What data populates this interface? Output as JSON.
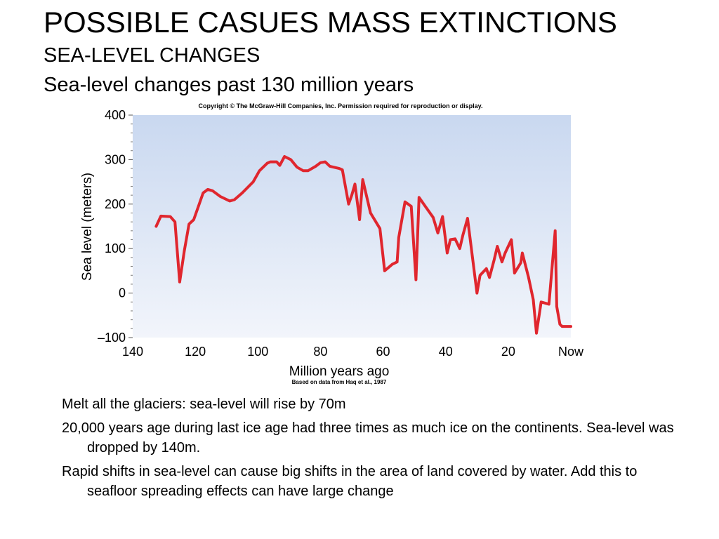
{
  "slide": {
    "title": "POSSIBLE CASUES MASS EXTINCTIONS",
    "subtitle": "SEA-LEVEL CHANGES",
    "subtitle2": "Sea-level changes past 130 million years"
  },
  "bullets": [
    "Melt all the glaciers: sea-level will rise by 70m",
    "20,000 years age during last ice age had three times as much ice on the continents. Sea-level was dropped by 140m.",
    "Rapid shifts in sea-level can cause big shifts in the area of land covered by water. Add this to seafloor spreading effects can have large change"
  ],
  "chart_data": {
    "type": "line",
    "copyright": "Copyright © The McGraw-Hill Companies, Inc. Permission required for reproduction or display.",
    "source": "Based on data from Haq et al., 1987",
    "xlabel": "Million years ago",
    "ylabel": "Sea level (meters)",
    "xlim": [
      140,
      0
    ],
    "ylim": [
      -100,
      400
    ],
    "x_ticks": [
      {
        "value": 140,
        "label": "140"
      },
      {
        "value": 120,
        "label": "120"
      },
      {
        "value": 100,
        "label": "100"
      },
      {
        "value": 80,
        "label": "80"
      },
      {
        "value": 60,
        "label": "60"
      },
      {
        "value": 40,
        "label": "40"
      },
      {
        "value": 20,
        "label": "20"
      },
      {
        "value": 0,
        "label": "Now"
      }
    ],
    "y_ticks": [
      {
        "value": 400,
        "label": "400"
      },
      {
        "value": 300,
        "label": "300"
      },
      {
        "value": 200,
        "label": "200"
      },
      {
        "value": 100,
        "label": "100"
      },
      {
        "value": 0,
        "label": "0"
      },
      {
        "value": -100,
        "label": "–100"
      }
    ],
    "grid": false,
    "colors": {
      "plot_bg_top": "#c9d8f0",
      "plot_bg_bottom": "#f2f5fb",
      "line": "#e0262e"
    },
    "series": [
      {
        "x": [
          132.5,
          131,
          128,
          126.5,
          125,
          123.5,
          122,
          120.5,
          119,
          117.5,
          116,
          114.5,
          112,
          109,
          107.5,
          105,
          101.5,
          99.5,
          97,
          96,
          94,
          93,
          91.5,
          89.5,
          87.5,
          85.5,
          84,
          81.5,
          80,
          78.5,
          77,
          74,
          73,
          71,
          70,
          69,
          67.5,
          66.5,
          64,
          61,
          59.5,
          57,
          55.5,
          55,
          53,
          51,
          49.5,
          48.5,
          46.5,
          44,
          42.5,
          41,
          39.5,
          38.5,
          37,
          35.5,
          34.5,
          33,
          30,
          29,
          27,
          26,
          24.5,
          23.5,
          22,
          21,
          19,
          18,
          16,
          15.5,
          13.5,
          12,
          11,
          9.5,
          7,
          5,
          4.5,
          3.5,
          2.8,
          2,
          1,
          0
        ],
        "y": [
          150,
          173,
          172,
          160,
          25,
          95,
          155,
          165,
          195,
          225,
          233,
          230,
          217,
          207,
          210,
          225,
          250,
          275,
          292,
          295,
          295,
          287,
          307,
          300,
          283,
          275,
          275,
          285,
          293,
          295,
          285,
          280,
          277,
          200,
          220,
          245,
          165,
          255,
          180,
          145,
          50,
          65,
          70,
          125,
          205,
          195,
          30,
          215,
          195,
          170,
          135,
          172,
          90,
          120,
          122,
          100,
          130,
          168,
          0,
          40,
          55,
          35,
          75,
          105,
          70,
          90,
          120,
          45,
          68,
          90,
          35,
          -15,
          -90,
          -20,
          -25,
          140,
          -30,
          -70,
          -75,
          -75,
          -75,
          -75
        ]
      }
    ]
  }
}
